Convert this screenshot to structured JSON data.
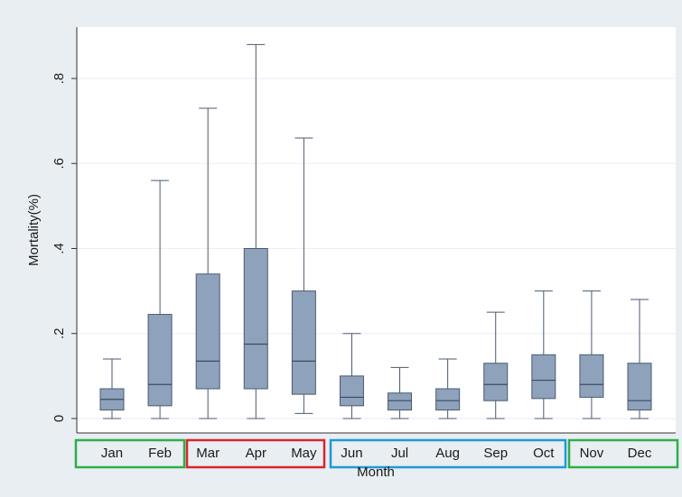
{
  "chart_data": {
    "type": "box",
    "x_label": "Month",
    "y_label": "Mortality(%)",
    "categories": [
      "Jan",
      "Feb",
      "Mar",
      "Apr",
      "May",
      "Jun",
      "Jul",
      "Aug",
      "Sep",
      "Oct",
      "Nov",
      "Dec"
    ],
    "whisker_low": [
      0,
      0,
      0,
      0,
      0.012,
      0,
      0,
      0,
      0,
      0,
      0,
      0
    ],
    "q1": [
      0.02,
      0.03,
      0.07,
      0.07,
      0.057,
      0.03,
      0.02,
      0.02,
      0.042,
      0.047,
      0.05,
      0.02
    ],
    "median": [
      0.045,
      0.08,
      0.135,
      0.175,
      0.135,
      0.05,
      0.042,
      0.042,
      0.08,
      0.09,
      0.08,
      0.042
    ],
    "q3": [
      0.07,
      0.245,
      0.34,
      0.4,
      0.3,
      0.1,
      0.06,
      0.07,
      0.13,
      0.15,
      0.15,
      0.13
    ],
    "whisker_high": [
      0.14,
      0.56,
      0.73,
      0.88,
      0.66,
      0.2,
      0.12,
      0.14,
      0.25,
      0.3,
      0.3,
      0.28
    ],
    "color": "#8fa2bb",
    "ylim": [
      -0.034,
      0.921
    ],
    "yticks": [
      {
        "value": 0,
        "label": "0"
      },
      {
        "value": 0.2,
        "label": ".2"
      },
      {
        "value": 0.4,
        "label": ".4"
      },
      {
        "value": 0.6,
        "label": ".6"
      },
      {
        "value": 0.8,
        "label": ".8"
      }
    ],
    "grid": true
  }
}
